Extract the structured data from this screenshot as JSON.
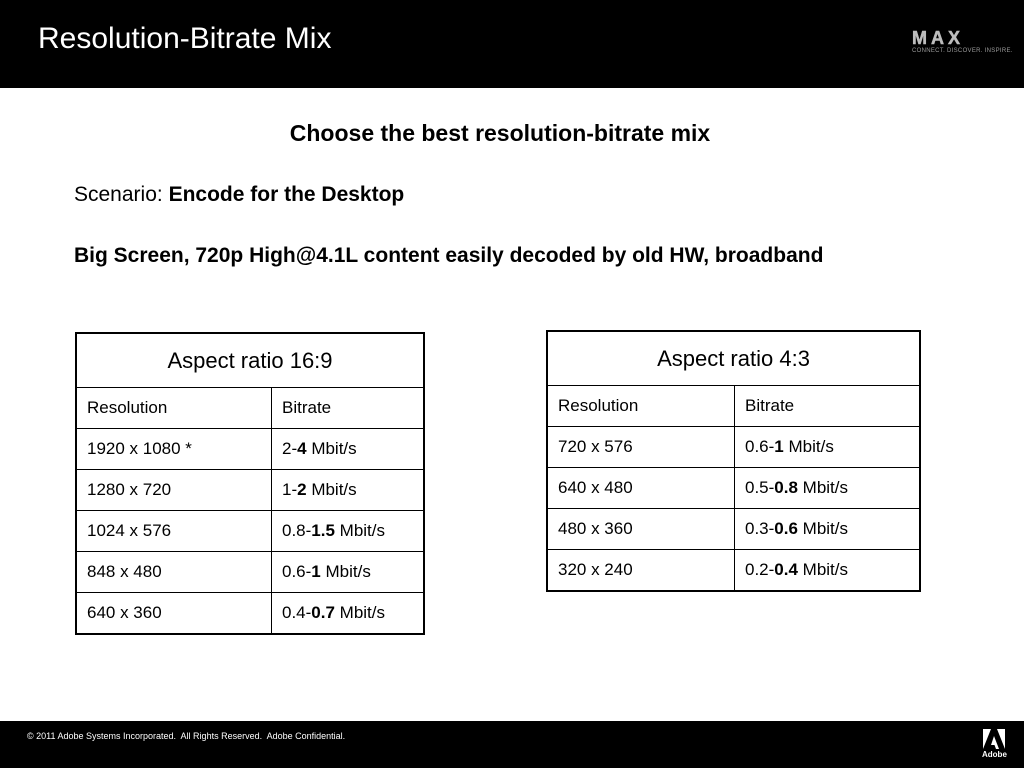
{
  "header": {
    "title": "Resolution-Bitrate Mix",
    "logo": {
      "word": "MAX",
      "tagline": "CONNECT. DISCOVER. INSPIRE."
    }
  },
  "content": {
    "heading": "Choose the best resolution-bitrate mix",
    "scenario_label": "Scenario:",
    "scenario_value": "Encode for the Desktop",
    "description": "Big Screen, 720p High@4.1L content easily decoded by old HW, broadband"
  },
  "tables": [
    {
      "caption": "Aspect ratio 16:9",
      "headers": [
        "Resolution",
        "Bitrate"
      ],
      "rows": [
        {
          "resolution": "1920 x 1080 *",
          "low": "2-",
          "high": "4",
          "unit": " Mbit/s"
        },
        {
          "resolution": "1280 x 720",
          "low": "1-",
          "high": "2",
          "unit": " Mbit/s"
        },
        {
          "resolution": "1024 x 576",
          "low": "0.8-",
          "high": "1.5",
          "unit": " Mbit/s"
        },
        {
          "resolution": "848 x 480",
          "low": "0.6-",
          "high": "1",
          "unit": " Mbit/s"
        },
        {
          "resolution": "640 x 360",
          "low": "0.4-",
          "high": "0.7",
          "unit": " Mbit/s"
        }
      ]
    },
    {
      "caption": "Aspect ratio 4:3",
      "headers": [
        "Resolution",
        "Bitrate"
      ],
      "rows": [
        {
          "resolution": "720 x 576",
          "low": "0.6-",
          "high": "1",
          "unit": " Mbit/s"
        },
        {
          "resolution": "640 x 480",
          "low": "0.5-",
          "high": "0.8",
          "unit": " Mbit/s"
        },
        {
          "resolution": "480 x 360",
          "low": "0.3-",
          "high": "0.6",
          "unit": " Mbit/s"
        },
        {
          "resolution": "320 x 240",
          "low": "0.2-",
          "high": "0.4",
          "unit": " Mbit/s"
        }
      ]
    }
  ],
  "footer": {
    "copyright": "© 2011 Adobe Systems Incorporated.  All Rights Reserved.  Adobe Confidential.",
    "brand": "Adobe"
  },
  "colors": {
    "bar": "#000000",
    "background": "#ffffff",
    "text": "#000000"
  },
  "icons": {
    "top_right": "max-logo-icon",
    "bottom_right": "adobe-logo-icon"
  }
}
